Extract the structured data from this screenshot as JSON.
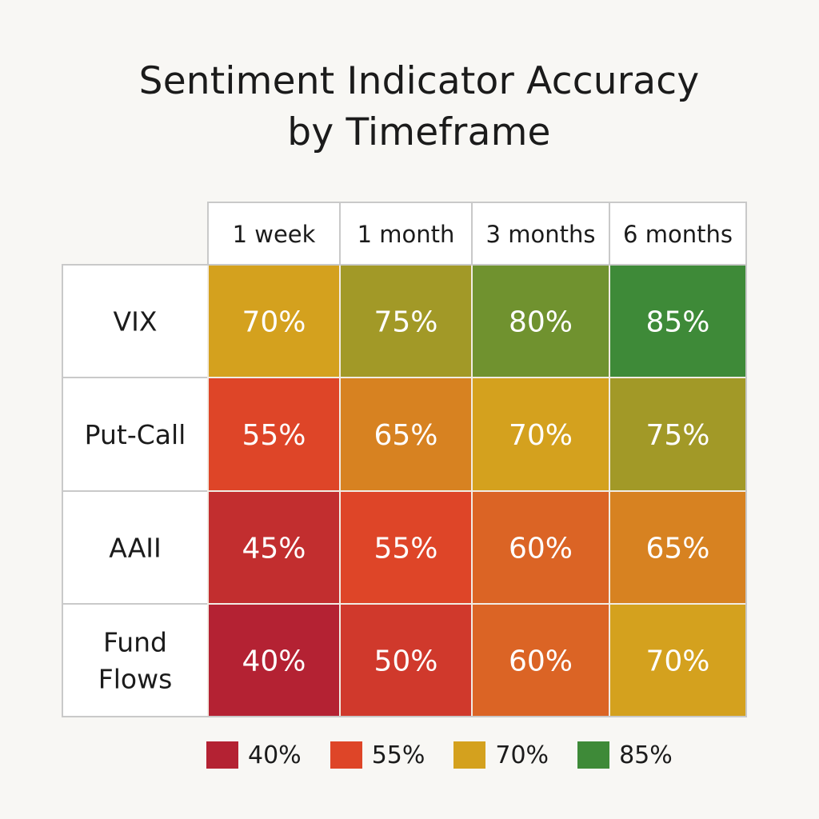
{
  "chart_data": {
    "type": "heatmap",
    "title": [
      "Sentiment Indicator Accuracy",
      "by Timeframe"
    ],
    "columns": [
      "1 week",
      "1 month",
      "3 months",
      "6 months"
    ],
    "rows": [
      {
        "label": [
          "VIX"
        ],
        "values": [
          70,
          75,
          80,
          85
        ]
      },
      {
        "label": [
          "Put-Call"
        ],
        "values": [
          55,
          65,
          70,
          75
        ]
      },
      {
        "label": [
          "AAII"
        ],
        "values": [
          45,
          55,
          60,
          65
        ]
      },
      {
        "label": [
          "Fund",
          "Flows"
        ],
        "values": [
          40,
          50,
          60,
          70
        ]
      }
    ],
    "cell_format": "{v}%",
    "legend": [
      {
        "label": "40%",
        "color": "#b42233"
      },
      {
        "label": "55%",
        "color": "#de4528"
      },
      {
        "label": "70%",
        "color": "#d4a11e"
      },
      {
        "label": "85%",
        "color": "#3e8a38"
      }
    ]
  }
}
